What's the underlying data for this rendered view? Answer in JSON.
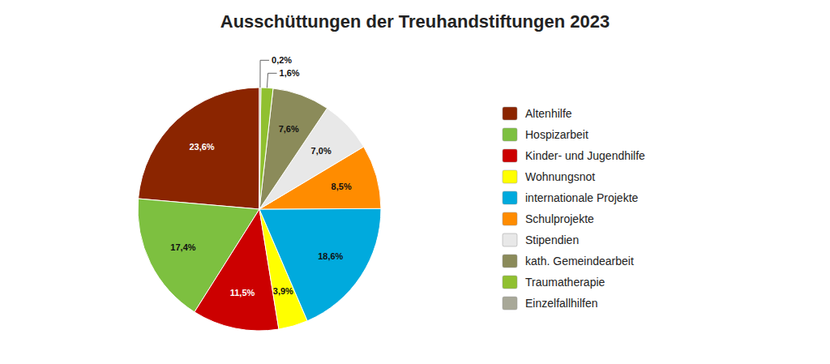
{
  "chart_data": {
    "type": "pie",
    "title": "Ausschüttungen der Treuhandstiftungen 2023",
    "categories": [
      "Altenhilfe",
      "Hospizarbeit",
      "Kinder- und Jugendhilfe",
      "Wohnungsnot",
      "internationale Projekte",
      "Schulprojekte",
      "Stipendien",
      "kath. Gemeindearbeit",
      "Traumatherapie",
      "Einzelfallhilfen"
    ],
    "values": [
      23.6,
      17.4,
      11.5,
      3.9,
      18.6,
      8.5,
      7.0,
      7.6,
      1.6,
      0.2
    ],
    "value_labels": [
      "23,6%",
      "17,4%",
      "11,5%",
      "3,9%",
      "18,6%",
      "8,5%",
      "7,0%",
      "7,6%",
      "1,6%",
      "0,2%"
    ],
    "colors": [
      "#8B2500",
      "#7DC040",
      "#CC0000",
      "#FFFF00",
      "#00AADD",
      "#FF8C00",
      "#E8E8E8",
      "#8B8B5A",
      "#90C030",
      "#A8A898"
    ],
    "data_labels": true,
    "legend": "right"
  }
}
